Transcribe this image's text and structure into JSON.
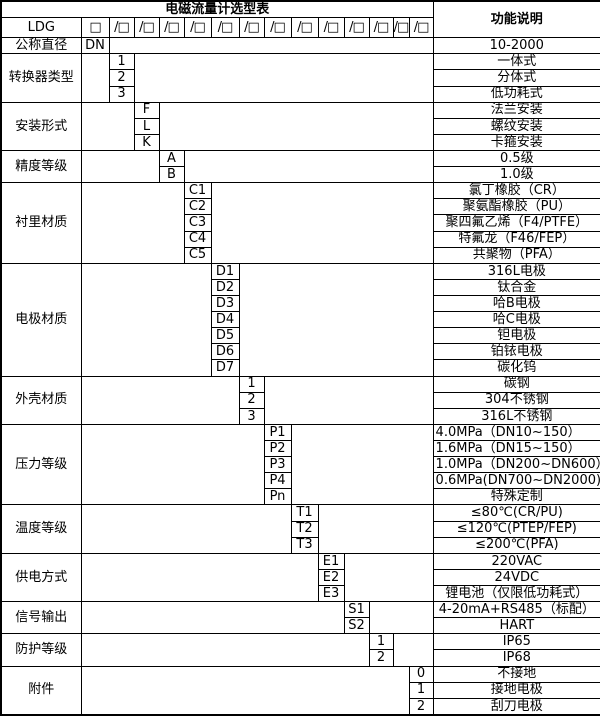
{
  "title": "电磁流量计选型表",
  "function_header": "功能说明",
  "model_row": {
    "prefix": "LDG",
    "boxes": [
      "□",
      "/□",
      "/□",
      "/□",
      "/□",
      "/□",
      "/□",
      "/□",
      "/□",
      "/□",
      "/□",
      "/□",
      "/□",
      "/□"
    ]
  },
  "sections": [
    {
      "label": "公称直径",
      "col": 1,
      "options": [
        {
          "code": "DN",
          "desc": "10-2000"
        }
      ]
    },
    {
      "label": "转换器类型",
      "col": 2,
      "options": [
        {
          "code": "1",
          "desc": "一体式"
        },
        {
          "code": "2",
          "desc": "分体式"
        },
        {
          "code": "3",
          "desc": "低功耗式"
        }
      ]
    },
    {
      "label": "安装形式",
      "col": 3,
      "options": [
        {
          "code": "F",
          "desc": "法兰安装"
        },
        {
          "code": "L",
          "desc": "螺纹安装"
        },
        {
          "code": "K",
          "desc": "卡箍安装"
        }
      ]
    },
    {
      "label": "精度等级",
      "col": 4,
      "options": [
        {
          "code": "A",
          "desc": "0.5级"
        },
        {
          "code": "B",
          "desc": "1.0级"
        }
      ]
    },
    {
      "label": "衬里材质",
      "col": 5,
      "options": [
        {
          "code": "C1",
          "desc": "氯丁橡胶（CR）"
        },
        {
          "code": "C2",
          "desc": "聚氨酯橡胶（PU）"
        },
        {
          "code": "C3",
          "desc": "聚四氟乙烯（F4/PTFE）"
        },
        {
          "code": "C4",
          "desc": "特氟龙（F46/FEP）"
        },
        {
          "code": "C5",
          "desc": "共聚物（PFA）"
        }
      ]
    },
    {
      "label": "电极材质",
      "col": 6,
      "options": [
        {
          "code": "D1",
          "desc": "316L电极"
        },
        {
          "code": "D2",
          "desc": "钛合金"
        },
        {
          "code": "D3",
          "desc": "哈B电极"
        },
        {
          "code": "D4",
          "desc": "哈C电极"
        },
        {
          "code": "D5",
          "desc": "钽电极"
        },
        {
          "code": "D6",
          "desc": "铂铱电极"
        },
        {
          "code": "D7",
          "desc": "碳化钨"
        }
      ]
    },
    {
      "label": "外壳材质",
      "col": 7,
      "options": [
        {
          "code": "1",
          "desc": "碳钢"
        },
        {
          "code": "2",
          "desc": "304不锈钢"
        },
        {
          "code": "3",
          "desc": "316L不锈钢"
        }
      ]
    },
    {
      "label": "压力等级",
      "col": 8,
      "options": [
        {
          "code": "P1",
          "desc": "4.0MPa（DN10~150）",
          "align": "left"
        },
        {
          "code": "P2",
          "desc": "1.6MPa（DN15~150）",
          "align": "left"
        },
        {
          "code": "P3",
          "desc": "1.0MPa（DN200~DN600）",
          "align": "left"
        },
        {
          "code": "P4",
          "desc": "0.6MPa(DN700~DN2000)",
          "align": "left"
        },
        {
          "code": "Pn",
          "desc": "特殊定制"
        }
      ]
    },
    {
      "label": "温度等级",
      "col": 9,
      "options": [
        {
          "code": "T1",
          "desc": "≤80℃(CR/PU)"
        },
        {
          "code": "T2",
          "desc": "≤120℃(PTEP/FEP)"
        },
        {
          "code": "T3",
          "desc": "≤200℃(PFA)"
        }
      ]
    },
    {
      "label": "供电方式",
      "col": 10,
      "options": [
        {
          "code": "E1",
          "desc": "220VAC"
        },
        {
          "code": "E2",
          "desc": "24VDC"
        },
        {
          "code": "E3",
          "desc": "锂电池（仅限低功耗式）"
        }
      ]
    },
    {
      "label": "信号输出",
      "col": 11,
      "options": [
        {
          "code": "S1",
          "desc": "4-20mA+RS485（标配）"
        },
        {
          "code": "S2",
          "desc": "HART"
        }
      ]
    },
    {
      "label": "防护等级",
      "col": 12,
      "options": [
        {
          "code": "1",
          "desc": "IP65"
        },
        {
          "code": "2",
          "desc": "IP68"
        }
      ]
    },
    {
      "label": "附件",
      "col": 14,
      "options": [
        {
          "code": "0",
          "desc": "不接地"
        },
        {
          "code": "1",
          "desc": "接地电极"
        },
        {
          "code": "2",
          "desc": "刮刀电极"
        }
      ]
    }
  ]
}
